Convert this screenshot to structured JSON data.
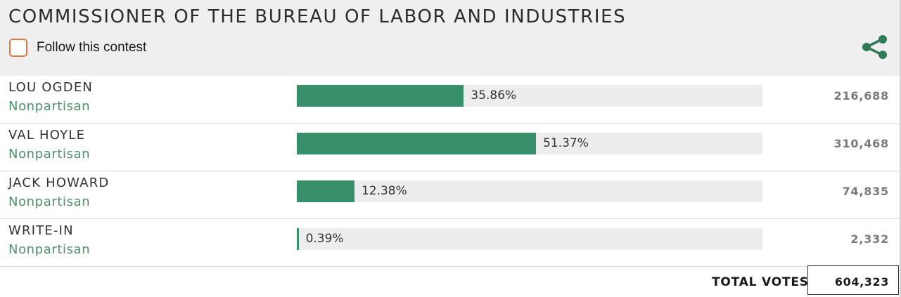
{
  "contest": {
    "title": "COMMISSIONER OF THE BUREAU OF LABOR AND INDUSTRIES",
    "follow_label": "Follow this contest",
    "follow_checked": false,
    "share_icon": "share-icon"
  },
  "colors": {
    "bar_fill": "#37906a",
    "bar_track": "#ededed",
    "party_text": "#4f8f6a",
    "checkbox_border": "#e8773f",
    "share_icon": "#2f7a57",
    "header_bg": "#efefef"
  },
  "candidates": [
    {
      "name": "LOU OGDEN",
      "party": "Nonpartisan",
      "percent": 35.86,
      "percent_label": "35.86%",
      "votes": "216,688"
    },
    {
      "name": "VAL HOYLE",
      "party": "Nonpartisan",
      "percent": 51.37,
      "percent_label": "51.37%",
      "votes": "310,468"
    },
    {
      "name": "JACK HOWARD",
      "party": "Nonpartisan",
      "percent": 12.38,
      "percent_label": "12.38%",
      "votes": "74,835"
    },
    {
      "name": "WRITE-IN",
      "party": "Nonpartisan",
      "percent": 0.39,
      "percent_label": "0.39%",
      "votes": "2,332"
    }
  ],
  "total": {
    "label": "TOTAL VOTES",
    "value": "604,323"
  }
}
